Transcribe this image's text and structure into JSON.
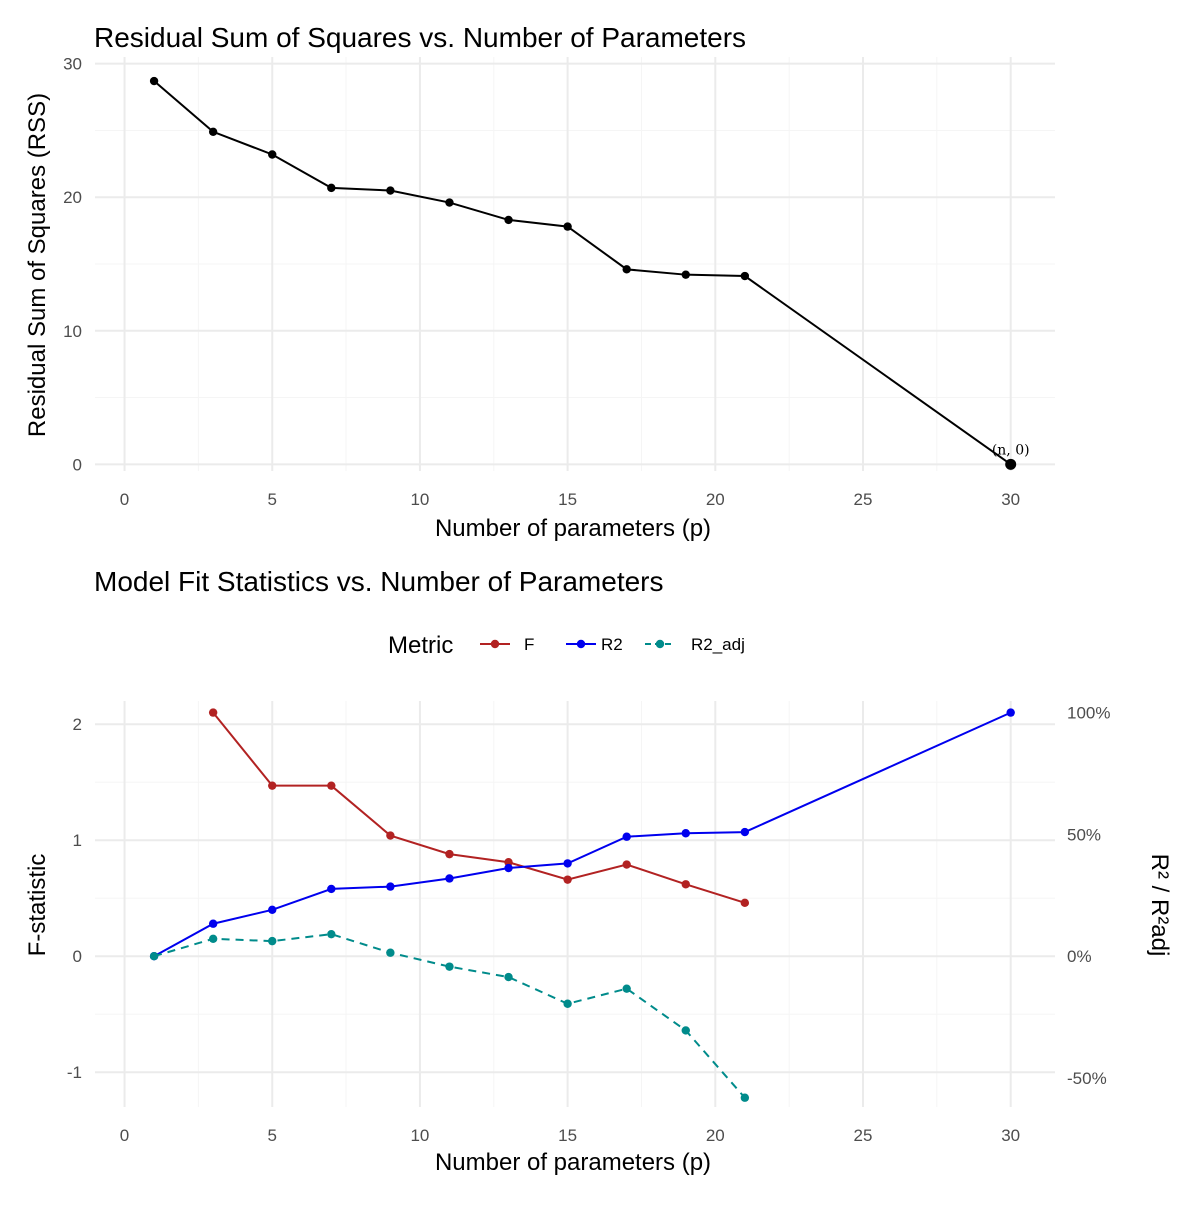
{
  "colors": {
    "background": "#ffffff",
    "grid_major": "#ebebeb",
    "grid_minor": "#f5f5f5",
    "rss_line": "#000000",
    "F": "#b22222",
    "R2": "#0000ee",
    "R2_adj": "#008b8b"
  },
  "chart_data": [
    {
      "type": "line",
      "title": "Residual Sum of Squares vs. Number of Parameters",
      "xlabel": "Number of parameters (p)",
      "ylabel": "Residual Sum of Squares (RSS)",
      "xlim": [
        -1,
        31.5
      ],
      "ylim": [
        -0.5,
        30.5
      ],
      "x_ticks": [
        0,
        5,
        10,
        15,
        20,
        25,
        30
      ],
      "y_ticks": [
        0,
        10,
        20,
        30
      ],
      "grid": true,
      "series": [
        {
          "x": [
            1,
            3,
            5,
            7,
            9,
            11,
            13,
            15,
            17,
            19,
            21,
            30
          ],
          "values": [
            28.7,
            24.9,
            23.2,
            20.7,
            20.5,
            19.6,
            18.3,
            17.8,
            14.6,
            14.2,
            14.1,
            0
          ]
        }
      ],
      "annotations": [
        {
          "text": "(n, 0)",
          "x": 30,
          "y": 0
        }
      ]
    },
    {
      "type": "line",
      "title": "Model Fit Statistics vs. Number of Parameters",
      "xlabel": "Number of parameters (p)",
      "ylabel": "F-statistic",
      "y2label": "R² / R²adj",
      "xlim": [
        -1,
        31.5
      ],
      "ylim": [
        -1.3,
        2.2
      ],
      "x_ticks": [
        0,
        5,
        10,
        15,
        20,
        25,
        30
      ],
      "y_ticks": [
        -1,
        0,
        1,
        2
      ],
      "y2_ticks": [
        {
          "label": "-50%",
          "value": -1.05
        },
        {
          "label": "0%",
          "value": 0
        },
        {
          "label": "50%",
          "value": 1.05
        },
        {
          "label": "100%",
          "value": 2.1
        }
      ],
      "grid": true,
      "legend": {
        "title": "Metric",
        "position": "top"
      },
      "series": [
        {
          "name": "F",
          "color": "#b22222",
          "dash": "solid",
          "x": [
            3,
            5,
            7,
            9,
            11,
            13,
            15,
            17,
            19,
            21
          ],
          "values": [
            2.1,
            1.47,
            1.47,
            1.04,
            0.88,
            0.81,
            0.66,
            0.79,
            0.62,
            0.46
          ]
        },
        {
          "name": "R2",
          "color": "#0000ee",
          "dash": "solid",
          "x": [
            1,
            3,
            5,
            7,
            9,
            11,
            13,
            15,
            17,
            19,
            21,
            30
          ],
          "values": [
            0,
            0.28,
            0.4,
            0.58,
            0.6,
            0.67,
            0.76,
            0.8,
            1.03,
            1.06,
            1.07,
            2.1
          ]
        },
        {
          "name": "R2_adj",
          "color": "#008b8b",
          "dash": "dashed",
          "x": [
            1,
            3,
            5,
            7,
            9,
            11,
            13,
            15,
            17,
            19,
            21
          ],
          "values": [
            0,
            0.15,
            0.13,
            0.19,
            0.03,
            -0.09,
            -0.18,
            -0.41,
            -0.28,
            -0.64,
            -1.22
          ]
        }
      ]
    }
  ]
}
